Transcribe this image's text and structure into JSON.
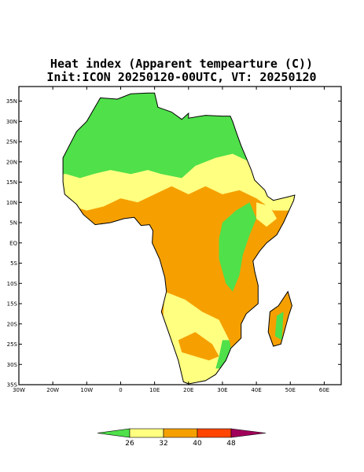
{
  "title": "Heat index (Apparent tempearture (C))",
  "subtitle": "Init:ICON 20250120-00UTC, VT: 20250120",
  "map": {
    "xlim": [
      -30,
      65
    ],
    "ylim": [
      -35,
      38.6
    ],
    "lon_ticks": [
      {
        "value": -30,
        "label": "30W"
      },
      {
        "value": -20,
        "label": "20W"
      },
      {
        "value": -10,
        "label": "10W"
      },
      0,
      {
        "value": 10,
        "label": "10E"
      },
      {
        "value": 20,
        "label": "20E"
      },
      {
        "value": 30,
        "label": "30E"
      },
      {
        "value": 40,
        "label": "40E"
      },
      {
        "value": 50,
        "label": "50E"
      },
      {
        "value": 60,
        "label": "60E"
      }
    ],
    "lat_ticks": [
      {
        "value": 35,
        "label": "35N"
      },
      {
        "value": 30,
        "label": "30N"
      },
      {
        "value": 25,
        "label": "25N"
      },
      {
        "value": 20,
        "label": "20N"
      },
      {
        "value": 15,
        "label": "15N"
      },
      {
        "value": 10,
        "label": "10N"
      },
      {
        "value": 5,
        "label": "5N"
      },
      {
        "value": 0,
        "label": "EQ"
      },
      {
        "value": -5,
        "label": "5S"
      },
      {
        "value": -10,
        "label": "10S"
      },
      {
        "value": -15,
        "label": "15S"
      },
      {
        "value": -20,
        "label": "20S"
      },
      {
        "value": -25,
        "label": "25S"
      },
      {
        "value": -30,
        "label": "30S"
      },
      {
        "value": -35,
        "label": "35S"
      }
    ]
  },
  "colorbar": {
    "levels": [
      26,
      32,
      40,
      48
    ],
    "colors": [
      "#4fe04a",
      "#ffff80",
      "#f5a000",
      "#ff4500",
      "#a0005a"
    ]
  }
}
